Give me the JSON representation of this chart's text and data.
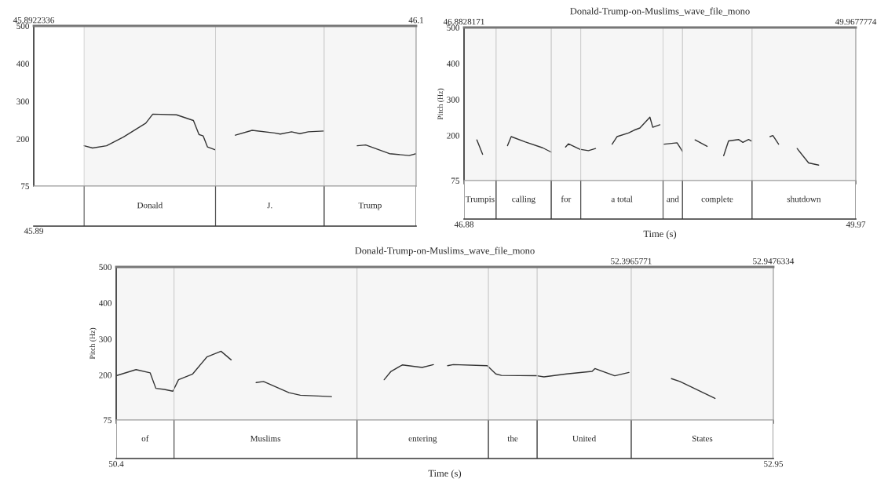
{
  "chart_data": [
    {
      "type": "line",
      "xlim": [
        45.8922336,
        46.1
      ],
      "annotations": [
        "45.89"
      ],
      "xticks": [
        45.8922336,
        46.1
      ],
      "ylim": [
        75,
        500
      ],
      "yticks": [
        75,
        200,
        300,
        400,
        500
      ],
      "series": [
        {
          "color": "#333333",
          "x": [
            45.9196,
            45.9242,
            45.9318,
            45.9409,
            45.9531,
            45.9569,
            45.9698,
            45.979,
            45.982,
            45.9843,
            45.9866,
            45.9909,
            45.995,
            46.0018,
            46.0109,
            46.0231,
            46.0262,
            46.0323,
            46.0368,
            46.0414,
            46.0498,
            46.06,
            46.068,
            46.0726,
            46.0855,
            46.0962,
            46.1
          ],
          "values": [
            182,
            176,
            182,
            205,
            242,
            266,
            264,
            249,
            212,
            208,
            179,
            171,
            null,
            210,
            223,
            216,
            213,
            219,
            214,
            219,
            221,
            null,
            182,
            184,
            161,
            156,
            161
          ]
        }
      ],
      "bands": [
        {
          "axis": "x",
          "from": 45.9196,
          "to": 45.991,
          "label": "Donald"
        },
        {
          "axis": "x",
          "from": 45.991,
          "to": 46.05,
          "label": "J."
        },
        {
          "axis": "x",
          "from": 46.05,
          "to": 46.1,
          "label": "Trump"
        }
      ]
    },
    {
      "type": "line",
      "title": "Donald-Trump-on-Muslims_wave_file_mono",
      "xlabel": "Time (s)",
      "ylabel": "Pitch (Hz)",
      "xlim": [
        46.8828171,
        49.9677774
      ],
      "xticks": [
        {
          "value": 46.8828171,
          "label": "46.88"
        },
        {
          "value": 49.9677774,
          "label": "49.97"
        }
      ],
      "x2lim": [
        46.8828171,
        49.9677774
      ],
      "x2ticks": [
        46.8828171,
        49.9677774
      ],
      "ylim": [
        75,
        500
      ],
      "yticks": [
        75,
        200,
        300,
        400,
        500
      ],
      "series": [
        {
          "color": "#333333",
          "x": [
            46.9841,
            47.0292,
            47.1,
            47.2251,
            47.2543,
            47.3669,
            47.502,
            47.5696,
            47.62,
            47.6822,
            47.7047,
            47.7948,
            47.8623,
            47.9186,
            48.0,
            48.0492,
            48.0875,
            48.1776,
            48.2226,
            48.2677,
            48.3465,
            48.369,
            48.4252,
            48.44,
            48.4591,
            48.5604,
            48.6032,
            48.65,
            48.7023,
            48.7969,
            48.85,
            48.9274,
            48.9657,
            49.0445,
            49.0786,
            49.1233,
            49.1458,
            49.2,
            49.2923,
            49.3148,
            49.3599,
            49.45,
            49.5061,
            49.5962,
            49.675
          ],
          "values": [
            188,
            148,
            null,
            172,
            197,
            182,
            166,
            154,
            null,
            168,
            177,
            162,
            158,
            164,
            null,
            176,
            197,
            207,
            215,
            221,
            251,
            223,
            230,
            null,
            176,
            180,
            156,
            null,
            188,
            170,
            null,
            144,
            185,
            189,
            181,
            189,
            185,
            null,
            197,
            200,
            176,
            null,
            164,
            124,
            118
          ]
        }
      ],
      "bands": [
        {
          "axis": "x",
          "from": 46.8828171,
          "to": 47.135,
          "label": "Trumpis"
        },
        {
          "axis": "x",
          "from": 47.135,
          "to": 47.5696,
          "label": "calling"
        },
        {
          "axis": "x",
          "from": 47.5696,
          "to": 47.8015,
          "label": "for"
        },
        {
          "axis": "x",
          "from": 47.8015,
          "to": 48.4501,
          "label": "a total"
        },
        {
          "axis": "x",
          "from": 48.4501,
          "to": 48.6032,
          "label": "and"
        },
        {
          "axis": "x",
          "from": 48.6032,
          "to": 49.1504,
          "label": "complete"
        },
        {
          "axis": "x",
          "from": 49.1504,
          "to": 49.9677774,
          "label": "shutdown"
        }
      ]
    },
    {
      "type": "line",
      "title": "Donald-Trump-on-Muslims_wave_file_mono",
      "xlabel": "Time (s)",
      "ylabel": "Pitch (Hz)",
      "xlim": [
        50.4,
        52.9476334
      ],
      "xticks": [
        50.4,
        {
          "value": 52.9476334,
          "label": "52.95"
        }
      ],
      "x2lim": [
        50.4,
        52.9476334
      ],
      "x2ticks": [
        52.3965771,
        52.9476334
      ],
      "ylim": [
        75,
        500
      ],
      "yticks": [
        75,
        200,
        300,
        400,
        500
      ],
      "series": [
        {
          "color": "#333333",
          "x": [
            50.4,
            50.4769,
            50.5318,
            50.5537,
            50.5867,
            50.6196,
            50.6416,
            50.6965,
            50.7514,
            50.8063,
            50.8458,
            50.9,
            50.9425,
            50.971,
            51.0698,
            51.1138,
            51.2346,
            51.35,
            51.4388,
            51.4652,
            51.5091,
            51.586,
            51.6299,
            51.66,
            51.6848,
            51.7068,
            51.8385,
            51.8715,
            51.8934,
            52.0318,
            52.0581,
            52.146,
            52.2448,
            52.2558,
            52.3327,
            52.3876,
            52.47,
            52.5523,
            52.5853,
            52.7214
          ],
          "values": [
            198,
            215,
            206,
            163,
            160,
            155,
            187,
            203,
            250,
            266,
            242,
            null,
            179,
            182,
            151,
            144,
            140,
            null,
            187,
            210,
            228,
            221,
            229,
            null,
            226,
            229,
            226,
            203,
            199,
            198,
            195,
            203,
            210,
            218,
            198,
            207,
            null,
            190,
            182,
            135
          ]
        }
      ],
      "bands": [
        {
          "axis": "x",
          "from": 50.4,
          "to": 50.624,
          "label": "of"
        },
        {
          "axis": "x",
          "from": 50.624,
          "to": 51.3334,
          "label": "Muslims"
        },
        {
          "axis": "x",
          "from": 51.3334,
          "to": 51.8429,
          "label": "entering"
        },
        {
          "axis": "x",
          "from": 51.8429,
          "to": 52.0318,
          "label": "the"
        },
        {
          "axis": "x",
          "from": 52.0318,
          "to": 52.3966,
          "label": "United"
        },
        {
          "axis": "x",
          "from": 52.3966,
          "to": 52.9476334,
          "label": "States"
        }
      ]
    }
  ]
}
